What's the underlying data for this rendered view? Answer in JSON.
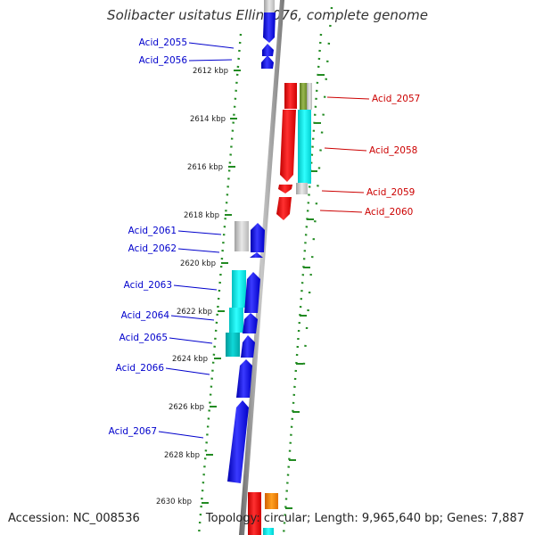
{
  "title": "Solibacter usitatus Ellin6076, complete genome",
  "footer": {
    "accession": "Accession: NC_008536",
    "topology": "Topology: circular; Length: 9,965,640 bp; Genes: 7,887"
  },
  "colors": {
    "left_label": "#0000cc",
    "right_label": "#cc0000",
    "tick": "#228b22",
    "axis": "#888888"
  },
  "kbp_ticks": [
    "2612 kbp",
    "2614 kbp",
    "2616 kbp",
    "2618 kbp",
    "2620 kbp",
    "2622 kbp",
    "2624 kbp",
    "2626 kbp",
    "2628 kbp",
    "2630 kbp"
  ],
  "left_labels": [
    "Acid_2055",
    "Acid_2056",
    "Acid_2061",
    "Acid_2062",
    "Acid_2063",
    "Acid_2064",
    "Acid_2065",
    "Acid_2066",
    "Acid_2067"
  ],
  "right_labels": [
    "Acid_2057",
    "Acid_2058",
    "Acid_2059",
    "Acid_2060"
  ]
}
